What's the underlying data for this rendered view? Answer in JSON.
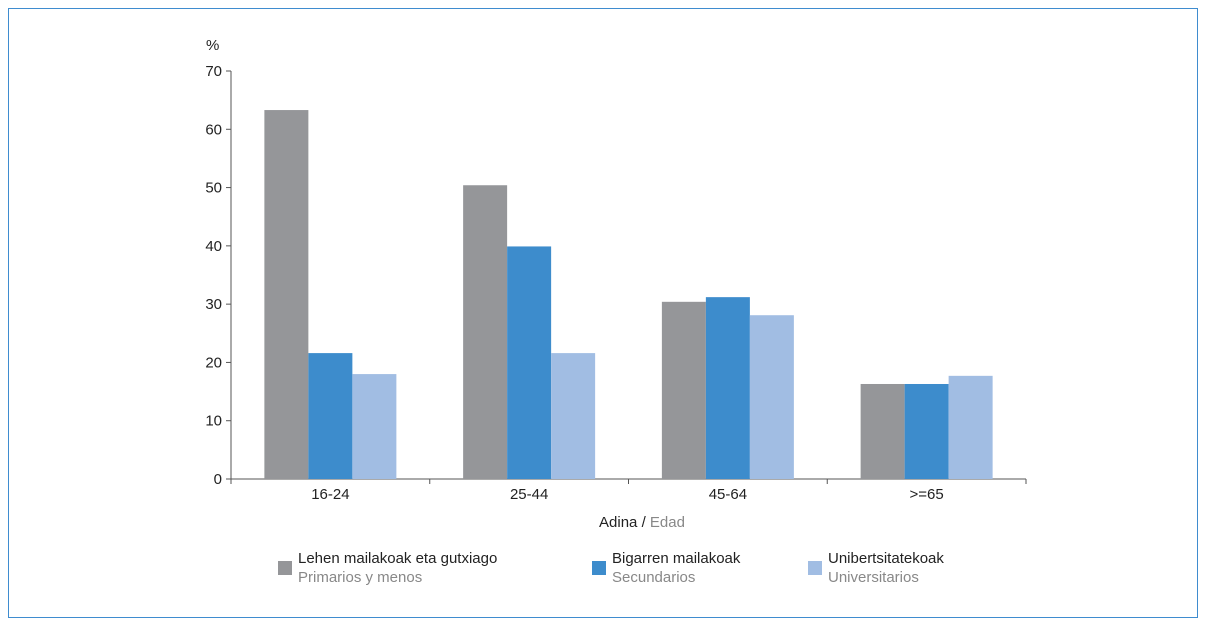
{
  "chart_data": {
    "type": "bar",
    "unit_label": "%",
    "categories": [
      "16-24",
      "25-44",
      "45-64",
      ">=65"
    ],
    "series": [
      {
        "name": "Lehen mailakoak eta gutxiago",
        "subname": "Primarios y menos",
        "color": "#959699",
        "values": [
          63.3,
          50.4,
          30.4,
          16.3
        ]
      },
      {
        "name": "Bigarren mailakoak",
        "subname": "Secundarios",
        "color": "#3d8ccc",
        "values": [
          21.6,
          39.9,
          31.2,
          16.3
        ]
      },
      {
        "name": "Unibertsitatekoak",
        "subname": "Universitarios",
        "color": "#a1bde3",
        "values": [
          18.0,
          21.6,
          28.1,
          17.7
        ]
      }
    ],
    "xlabel": {
      "primary": "Adina",
      "separator": " / ",
      "secondary": "Edad"
    },
    "ylim": [
      0,
      70
    ],
    "yticks": [
      0,
      10,
      20,
      30,
      40,
      50,
      60,
      70
    ],
    "grid": false,
    "legend_position": "bottom"
  },
  "colors": {
    "frame": "#3f8ccf",
    "axis": "#555555",
    "secondary_text": "#888888"
  }
}
